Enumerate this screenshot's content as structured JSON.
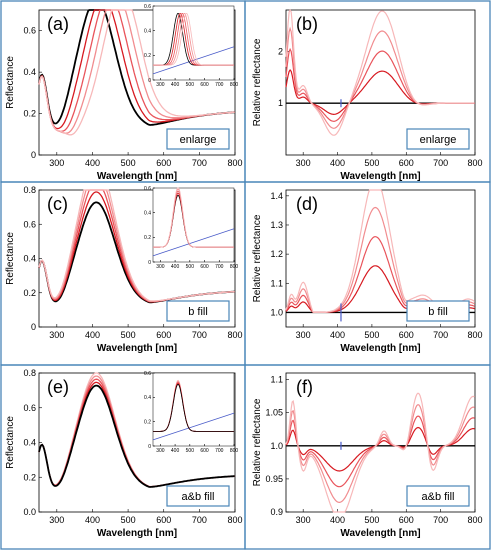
{
  "chart_data": [
    {
      "id": "a",
      "type": "line",
      "panel_label": "(a)",
      "xlabel": "Wavelength [nm]",
      "ylabel": "Reflectance",
      "xlim": [
        250,
        800
      ],
      "ylim": [
        0,
        0.7
      ],
      "xticks": [
        300,
        400,
        500,
        600,
        700,
        800
      ],
      "yticks": [
        0,
        0.2,
        0.4,
        0.6
      ],
      "ytick_labels": [
        "0",
        "0.2",
        "0.4",
        "0.6"
      ],
      "box_label": "enlarge",
      "kind": "reflectance",
      "peak_shift": 18,
      "peak_gain": 0.007,
      "series_colors": [
        "#000000",
        "#d71920",
        "#e9545b",
        "#f18c8f",
        "#f7b8b9"
      ],
      "inset": {
        "xlim": [
          250,
          800
        ],
        "ylim": [
          0,
          0.6
        ],
        "xticks": [
          300,
          400,
          500,
          600,
          700,
          800
        ],
        "yticks": [
          0,
          0.2,
          0.4,
          0.6
        ],
        "ytick_labels": [
          "0",
          "0.2",
          "0.4",
          "0.6"
        ],
        "reference_line": {
          "color": "#4a5cc9",
          "x": [
            250,
            800
          ],
          "y": [
            0.05,
            0.27
          ]
        }
      }
    },
    {
      "id": "b",
      "type": "line",
      "panel_label": "(b)",
      "xlabel": "Wavelength [nm]",
      "ylabel": "Relative reflectance",
      "xlim": [
        250,
        800
      ],
      "ylim": [
        0,
        2.8
      ],
      "xticks": [
        300,
        400,
        500,
        600,
        700,
        800
      ],
      "yticks": [
        1,
        2
      ],
      "ytick_labels": [
        "1",
        "2"
      ],
      "box_label": "enlarge",
      "kind": "relative_enlarge",
      "baseline": 1.0,
      "marker_x": 410,
      "series_colors": [
        "#d71920",
        "#e9545b",
        "#f18c8f",
        "#f7b8b9"
      ]
    },
    {
      "id": "c",
      "type": "line",
      "panel_label": "(c)",
      "xlabel": "Wavelength [nm]",
      "ylabel": "Reflectance",
      "xlim": [
        250,
        800
      ],
      "ylim": [
        0,
        0.8
      ],
      "xticks": [
        300,
        400,
        500,
        600,
        700,
        800
      ],
      "yticks": [
        0,
        0.2,
        0.4,
        0.6,
        0.8
      ],
      "ytick_labels": [
        "0",
        "0.2",
        "0.4",
        "0.6",
        "0.8"
      ],
      "box_label": "b fill",
      "kind": "reflectance",
      "peak_shift": 0,
      "peak_gain": 0.04,
      "series_colors": [
        "#000000",
        "#d71920",
        "#e9545b",
        "#f18c8f",
        "#f7b8b9"
      ],
      "inset": {
        "xlim": [
          250,
          800
        ],
        "ylim": [
          0,
          0.6
        ],
        "xticks": [
          300,
          400,
          500,
          600,
          700,
          800
        ],
        "yticks": [
          0,
          0.2,
          0.4,
          0.6
        ],
        "ytick_labels": [
          "0",
          "0.2",
          "0.4",
          "0.6"
        ],
        "reference_line": {
          "color": "#4a5cc9",
          "x": [
            250,
            800
          ],
          "y": [
            0.05,
            0.27
          ]
        }
      }
    },
    {
      "id": "d",
      "type": "line",
      "panel_label": "(d)",
      "xlabel": "Wavelength [nm]",
      "ylabel": "Relative reflectance",
      "xlim": [
        250,
        800
      ],
      "ylim": [
        0.95,
        1.42
      ],
      "xticks": [
        300,
        400,
        500,
        600,
        700,
        800
      ],
      "yticks": [
        1.0,
        1.1,
        1.2,
        1.3,
        1.4
      ],
      "ytick_labels": [
        "1.0",
        "1.1",
        "1.2",
        "1.3",
        "1.4"
      ],
      "box_label": "b fill",
      "kind": "relative_bfill",
      "baseline": 1.0,
      "marker_x": 410,
      "series_colors": [
        "#d71920",
        "#e9545b",
        "#f18c8f",
        "#f7b8b9"
      ]
    },
    {
      "id": "e",
      "type": "line",
      "panel_label": "(e)",
      "xlabel": "Wavelength [nm]",
      "ylabel": "Reflectance",
      "xlim": [
        250,
        800
      ],
      "ylim": [
        0,
        0.8
      ],
      "xticks": [
        300,
        400,
        500,
        600,
        700,
        800
      ],
      "yticks": [
        0,
        0.2,
        0.4,
        0.6,
        0.8
      ],
      "ytick_labels": [
        "0.0",
        "0.2",
        "0.4",
        "0.6",
        "0.8"
      ],
      "box_label": "a&b fill",
      "kind": "reflectance",
      "peak_shift": 0,
      "peak_gain": -0.03,
      "series_colors": [
        "#f7b8b9",
        "#f18c8f",
        "#e9545b",
        "#d71920",
        "#000000"
      ],
      "inset": {
        "xlim": [
          250,
          800
        ],
        "ylim": [
          0,
          0.6
        ],
        "xticks": [
          300,
          400,
          500,
          600,
          700,
          800
        ],
        "yticks": [
          0,
          0.2,
          0.4,
          0.6
        ],
        "ytick_labels": [
          "0",
          "0.2",
          "0.4",
          "0.6"
        ],
        "reference_line": {
          "color": "#4a5cc9",
          "x": [
            250,
            800
          ],
          "y": [
            0.05,
            0.27
          ]
        }
      }
    },
    {
      "id": "f",
      "type": "line",
      "panel_label": "(f)",
      "xlabel": "Wavelength [nm]",
      "ylabel": "Relative reflectance",
      "xlim": [
        250,
        800
      ],
      "ylim": [
        0.9,
        1.11
      ],
      "xticks": [
        300,
        400,
        500,
        600,
        700,
        800
      ],
      "yticks": [
        0.9,
        0.95,
        1.0,
        1.05,
        1.1
      ],
      "ytick_labels": [
        "0.9",
        "0.95",
        "1.0",
        "1.05",
        "1.1"
      ],
      "box_label": "a&b fill",
      "kind": "relative_abfill",
      "baseline": 1.0,
      "marker_x": 410,
      "series_colors": [
        "#d71920",
        "#e9545b",
        "#f18c8f",
        "#f7b8b9"
      ]
    }
  ]
}
